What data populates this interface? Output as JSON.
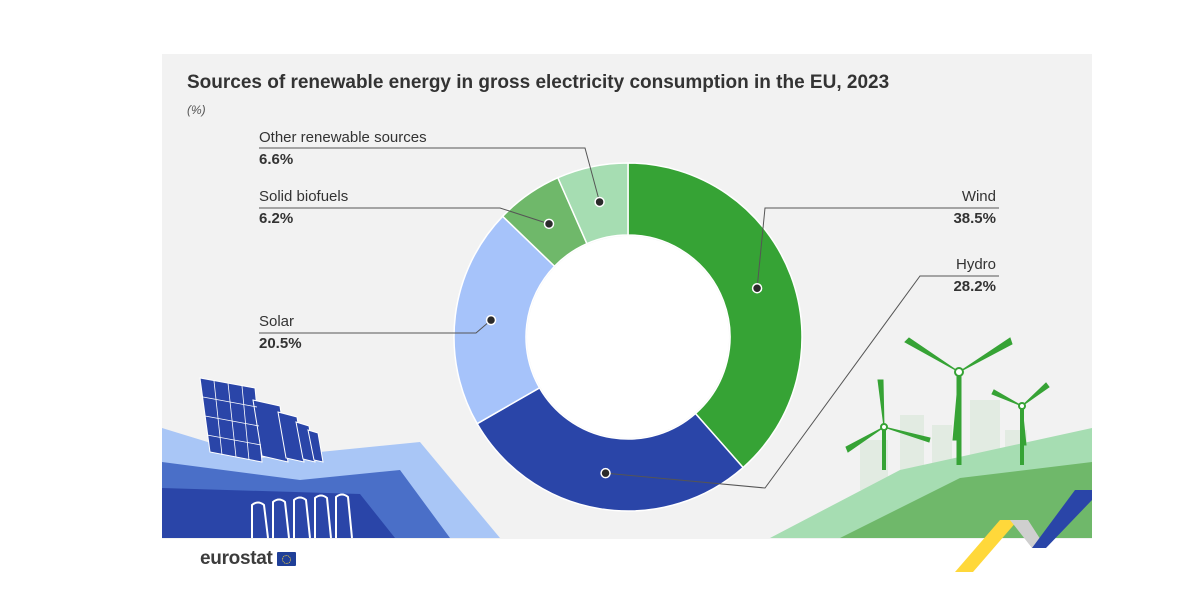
{
  "chart_data": {
    "type": "pie",
    "title": "Sources of renewable energy in gross electricity consumption in the EU, 2023",
    "unit": "(%)",
    "series": [
      {
        "name": "Wind",
        "value": 38.5,
        "value_label": "38.5%",
        "color": "#36a335"
      },
      {
        "name": "Hydro",
        "value": 28.2,
        "value_label": "28.2%",
        "color": "#2a45a8"
      },
      {
        "name": "Solar",
        "value": 20.5,
        "value_label": "20.5%",
        "color": "#a6c3fa"
      },
      {
        "name": "Solid biofuels",
        "value": 6.2,
        "value_label": "6.2%",
        "color": "#6fb86a"
      },
      {
        "name": "Other renewable sources",
        "value": 6.6,
        "value_label": "6.6%",
        "color": "#a6ddb2"
      }
    ]
  },
  "brand": {
    "name": "eurostat"
  }
}
